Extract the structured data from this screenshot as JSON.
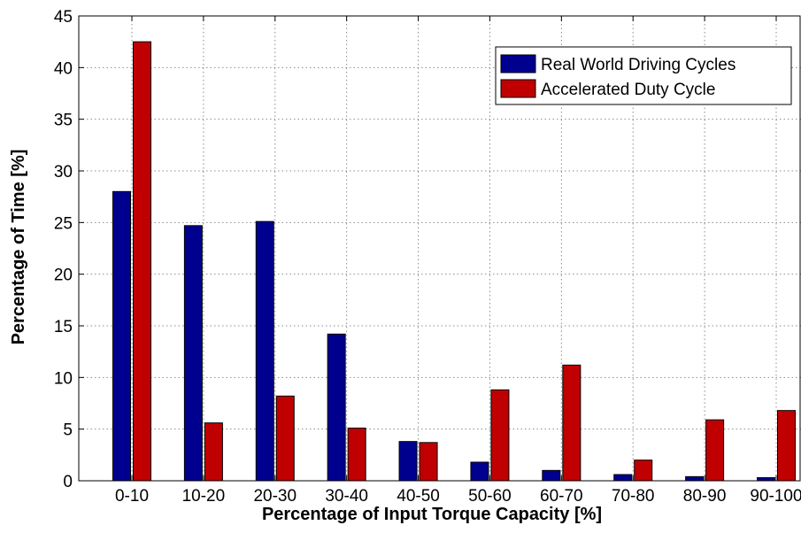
{
  "chart_data": {
    "type": "bar",
    "categories": [
      "0-10",
      "10-20",
      "20-30",
      "30-40",
      "40-50",
      "50-60",
      "60-70",
      "70-80",
      "80-90",
      "90-100"
    ],
    "series": [
      {
        "name": "Real World Driving Cycles",
        "color": "#00008f",
        "values": [
          28.0,
          24.7,
          25.1,
          14.2,
          3.8,
          1.8,
          1.0,
          0.6,
          0.4,
          0.3
        ]
      },
      {
        "name": "Accelerated Duty Cycle",
        "color": "#c00000",
        "values": [
          42.5,
          5.6,
          8.2,
          5.1,
          3.7,
          8.8,
          11.2,
          2.0,
          5.9,
          6.8
        ]
      }
    ],
    "title": "",
    "xlabel": "Percentage of Input Torque Capacity [%]",
    "ylabel": "Percentage of Time [%]",
    "ylim": [
      0,
      45
    ],
    "yticks": [
      0,
      5,
      10,
      15,
      20,
      25,
      30,
      35,
      40,
      45
    ],
    "grid": true,
    "legend_position": "top-right"
  }
}
